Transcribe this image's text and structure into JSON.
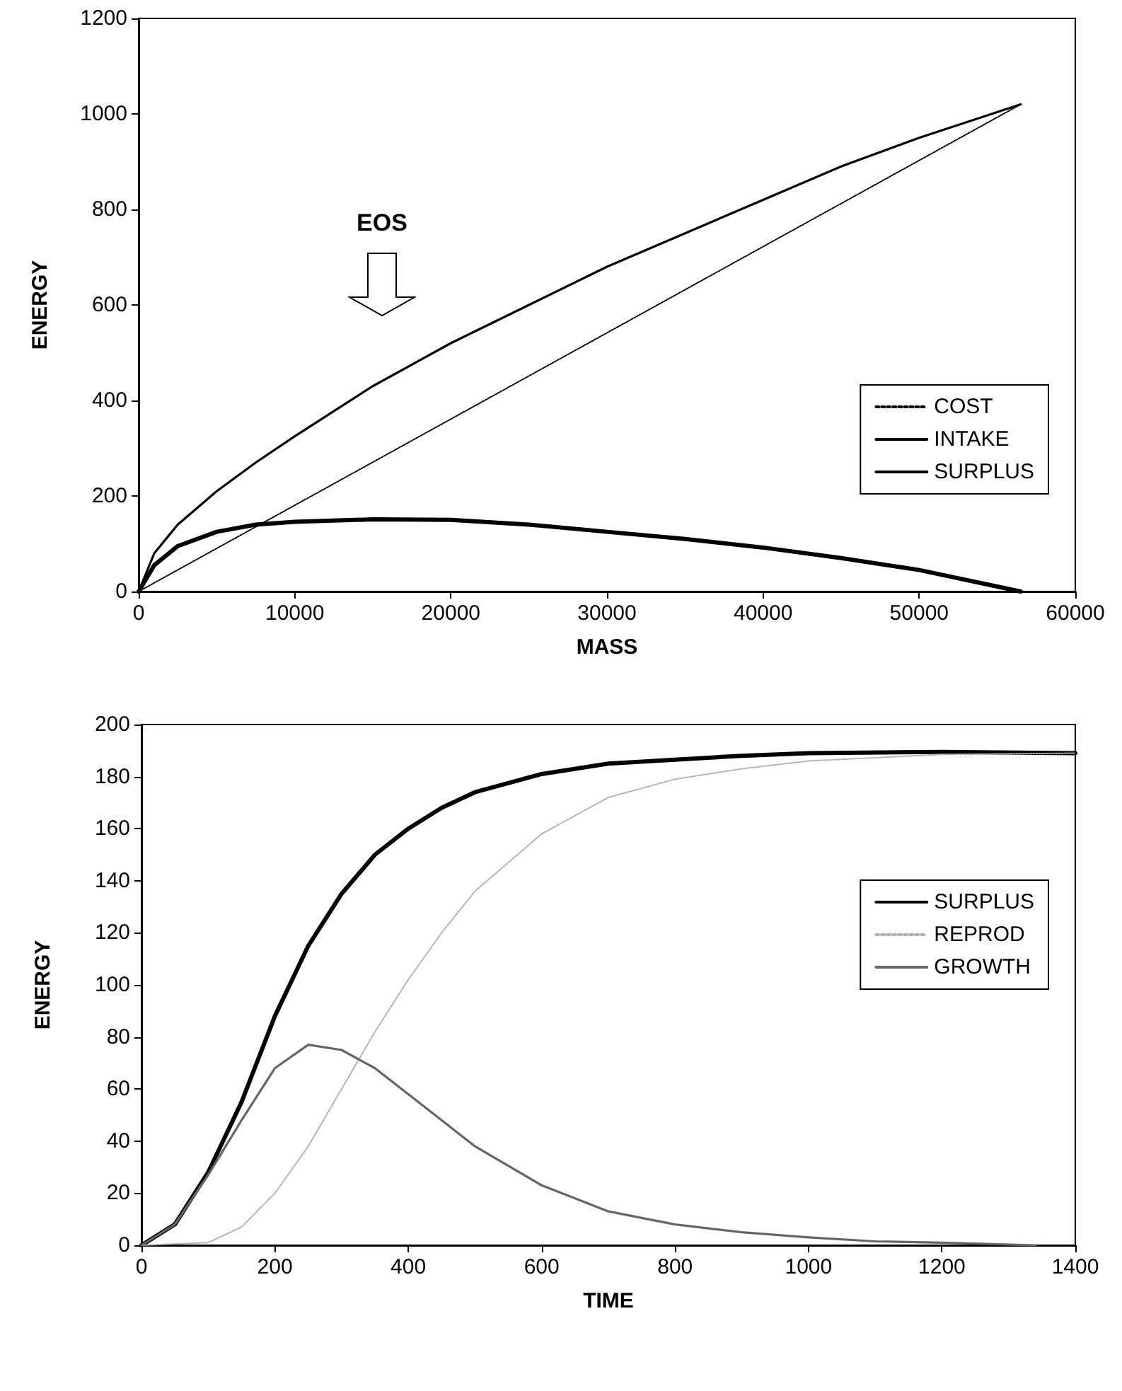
{
  "chart_data": [
    {
      "type": "line",
      "xlabel": "MASS",
      "ylabel": "ENERGY",
      "xlim": [
        0,
        60000
      ],
      "ylim": [
        0,
        1200
      ],
      "xticks": [
        0,
        10000,
        20000,
        30000,
        40000,
        50000,
        60000
      ],
      "yticks": [
        0,
        200,
        400,
        600,
        800,
        1000,
        1200
      ],
      "grid": false,
      "legend": "right",
      "marker": "none",
      "annotations": [
        "EOS"
      ],
      "series": [
        {
          "name": "COST",
          "color": "#000000",
          "line_style": "dotted",
          "x": [
            0,
            56500
          ],
          "values": [
            0,
            1020
          ]
        },
        {
          "name": "INTAKE",
          "color": "#000000",
          "line_style": "solid",
          "x": [
            0,
            1000,
            2500,
            5000,
            7500,
            10000,
            15000,
            20000,
            25000,
            30000,
            35000,
            40000,
            45000,
            50000,
            56500
          ],
          "values": [
            0,
            80,
            140,
            210,
            270,
            325,
            430,
            520,
            600,
            680,
            750,
            820,
            890,
            950,
            1020
          ]
        },
        {
          "name": "SURPLUS",
          "color": "#000000",
          "line_style": "solid",
          "x": [
            0,
            1000,
            2500,
            5000,
            7500,
            10000,
            15000,
            20000,
            25000,
            30000,
            35000,
            40000,
            45000,
            50000,
            56500
          ],
          "values": [
            0,
            55,
            95,
            125,
            140,
            146,
            151,
            150,
            140,
            125,
            110,
            92,
            70,
            45,
            0
          ]
        }
      ]
    },
    {
      "type": "line",
      "xlabel": "TIME",
      "ylabel": "ENERGY",
      "xlim": [
        0,
        1400
      ],
      "ylim": [
        0,
        200
      ],
      "xticks": [
        0,
        200,
        400,
        600,
        800,
        1000,
        1200,
        1400
      ],
      "yticks": [
        0,
        20,
        40,
        60,
        80,
        100,
        120,
        140,
        160,
        180,
        200
      ],
      "grid": false,
      "legend": "right",
      "marker": "none",
      "series": [
        {
          "name": "SURPLUS",
          "color": "#000000",
          "line_style": "solid",
          "x": [
            0,
            50,
            100,
            150,
            200,
            250,
            300,
            350,
            400,
            450,
            500,
            600,
            700,
            800,
            900,
            1000,
            1200,
            1400
          ],
          "values": [
            0,
            8,
            28,
            55,
            88,
            115,
            135,
            150,
            160,
            168,
            174,
            181,
            185,
            186.5,
            188,
            189,
            189.5,
            189
          ]
        },
        {
          "name": "REPROD",
          "color": "#b0b0b0",
          "line_style": "dotted",
          "x": [
            0,
            100,
            150,
            200,
            250,
            300,
            350,
            400,
            450,
            500,
            600,
            700,
            800,
            900,
            1000,
            1200,
            1400
          ],
          "values": [
            0,
            1,
            7,
            20,
            38,
            60,
            82,
            102,
            120,
            136,
            158,
            172,
            179,
            183,
            186,
            188.5,
            189
          ]
        },
        {
          "name": "GROWTH",
          "color": "#666666",
          "line_style": "solid",
          "x": [
            0,
            50,
            100,
            150,
            200,
            250,
            300,
            350,
            400,
            450,
            500,
            600,
            700,
            800,
            900,
            1000,
            1100,
            1200,
            1340
          ],
          "values": [
            0,
            8,
            27,
            48,
            68,
            77,
            75,
            68,
            58,
            48,
            38,
            23,
            13,
            8,
            5,
            3,
            1.5,
            1,
            0
          ]
        }
      ]
    }
  ]
}
